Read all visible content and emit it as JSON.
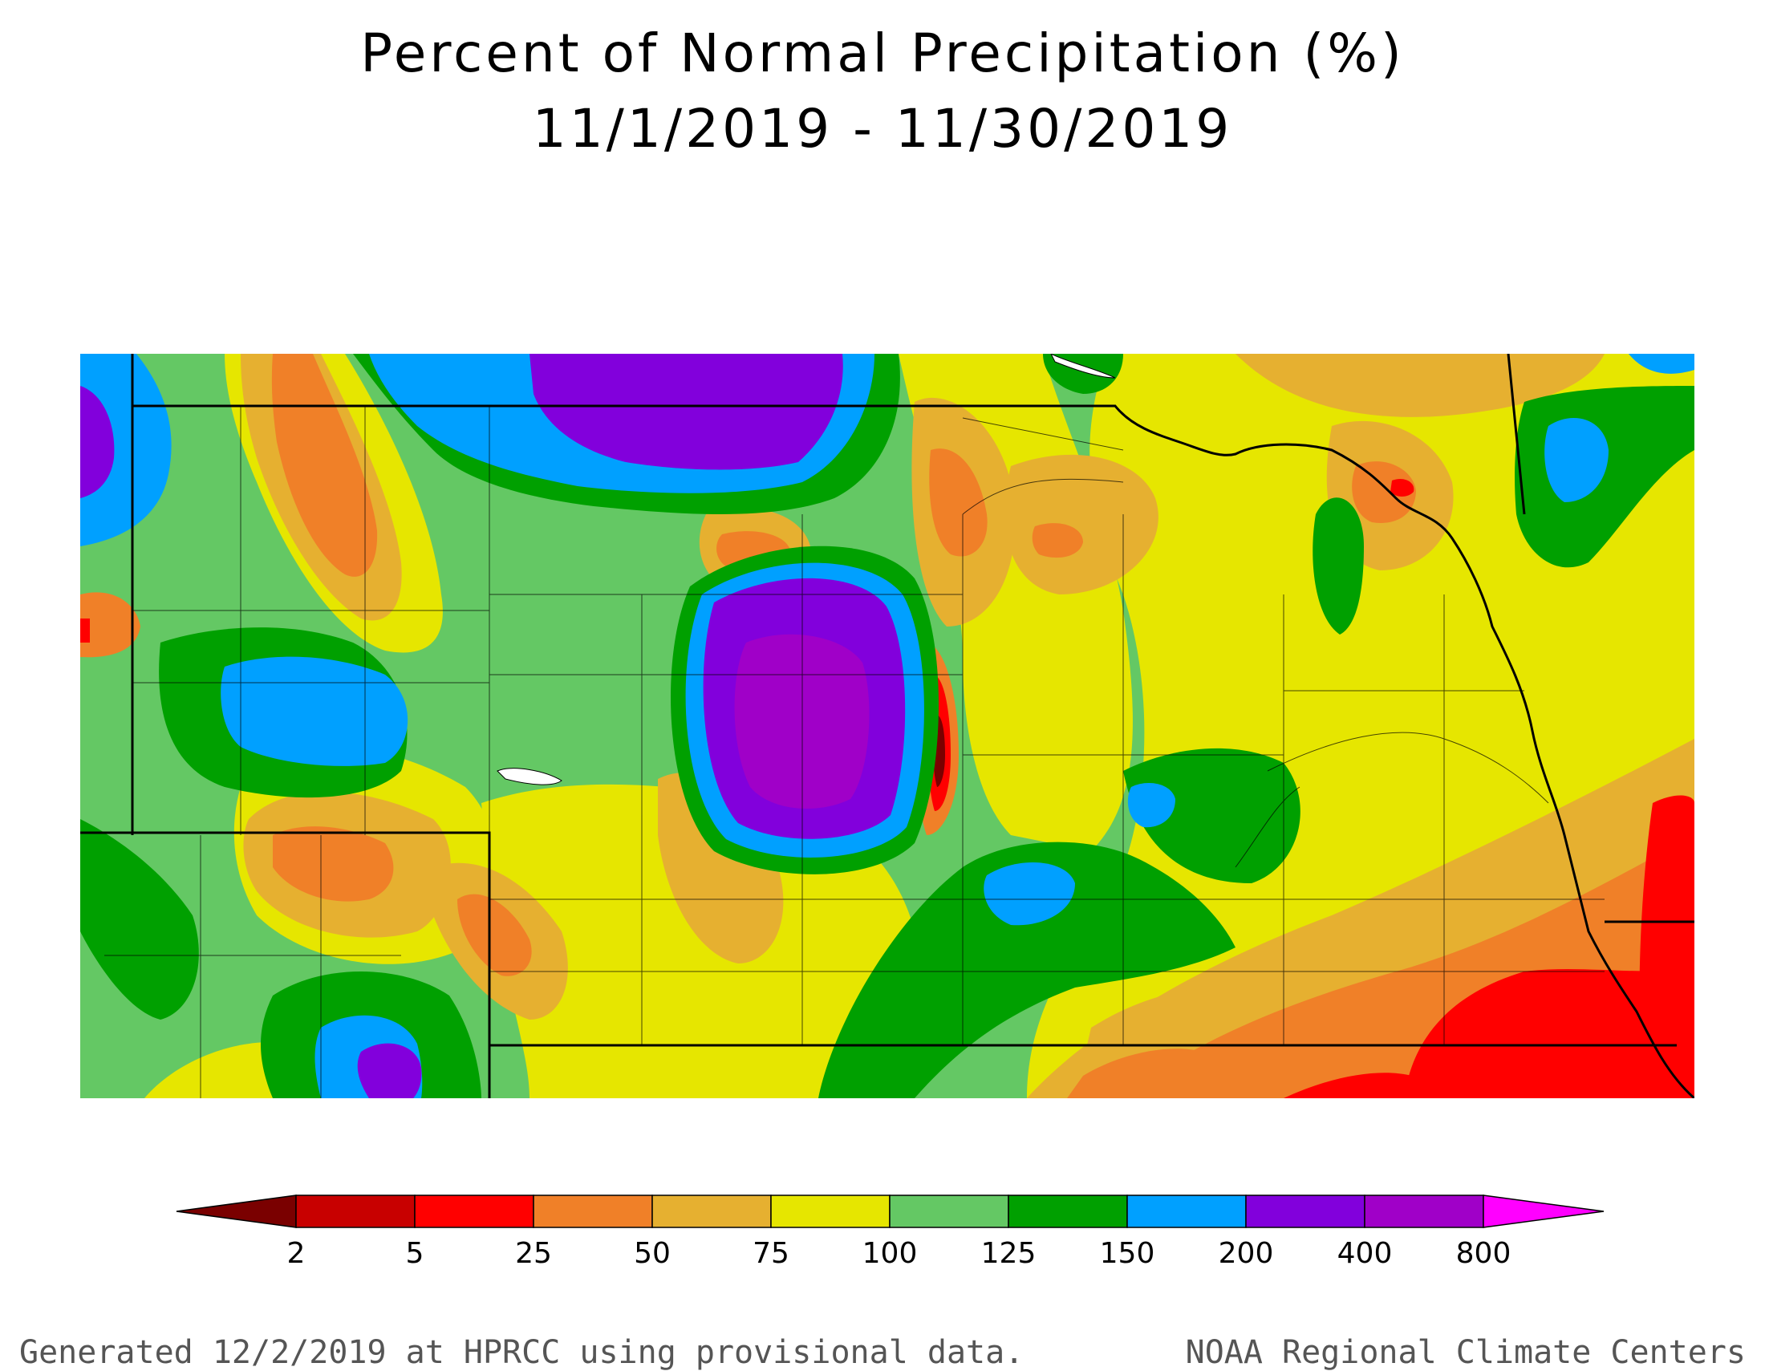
{
  "title": "Percent of Normal Precipitation (%)",
  "subtitle": "11/1/2019 - 11/30/2019",
  "legend": {
    "colors": [
      "#7a0000",
      "#c80000",
      "#ff0000",
      "#f08028",
      "#e6b030",
      "#e6e600",
      "#64c864",
      "#00a000",
      "#00a0ff",
      "#8200dc",
      "#a000c8",
      "#ff00ff"
    ],
    "ticks": [
      "2",
      "5",
      "25",
      "50",
      "75",
      "100",
      "125",
      "150",
      "200",
      "400",
      "800"
    ]
  },
  "footer": {
    "left": "Generated 12/2/2019 at HPRCC using provisional data.",
    "right": "NOAA Regional Climate Centers"
  }
}
